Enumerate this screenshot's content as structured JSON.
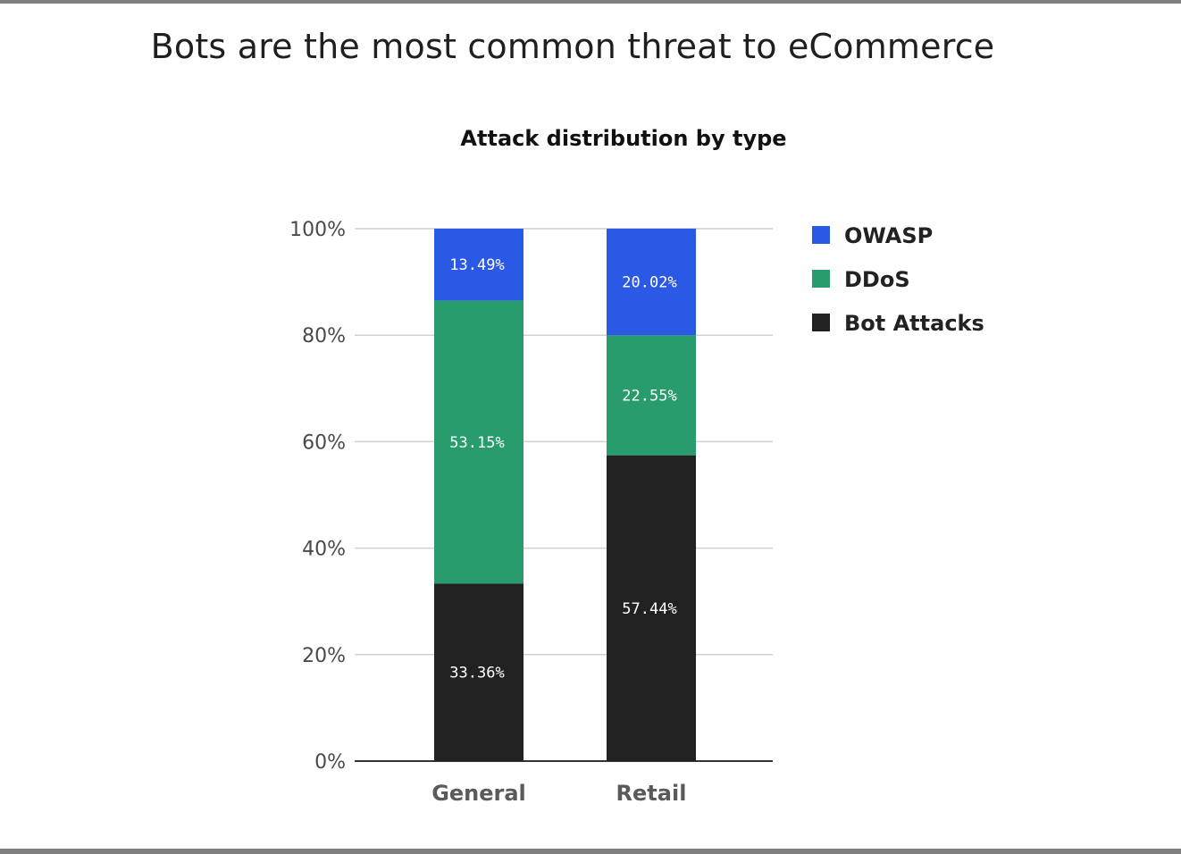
{
  "page": {
    "headline": "Bots are the most common threat to eCommerce"
  },
  "chart_data": {
    "type": "bar",
    "stacked": true,
    "title": "Attack distribution by type",
    "xlabel": "",
    "ylabel": "",
    "categories": [
      "General",
      "Retail"
    ],
    "ylim": [
      0,
      100
    ],
    "y_ticks": [
      "0%",
      "20%",
      "40%",
      "60%",
      "80%",
      "100%"
    ],
    "y_tick_values": [
      0,
      20,
      40,
      60,
      80,
      100
    ],
    "grid": true,
    "legend_position": "right",
    "series": [
      {
        "name": "Bot Attacks",
        "color": "#212121",
        "values": [
          33.36,
          57.44
        ],
        "labels": [
          "33.36%",
          "57.44%"
        ]
      },
      {
        "name": "DDoS",
        "color": "#289c6c",
        "values": [
          53.15,
          22.55
        ],
        "labels": [
          "53.15%",
          "22.55%"
        ]
      },
      {
        "name": "OWASP",
        "color": "#2a59e6",
        "values": [
          13.49,
          20.02
        ],
        "labels": [
          "13.49%",
          "20.02%"
        ]
      }
    ],
    "legend_order": [
      "OWASP",
      "DDoS",
      "Bot Attacks"
    ]
  }
}
